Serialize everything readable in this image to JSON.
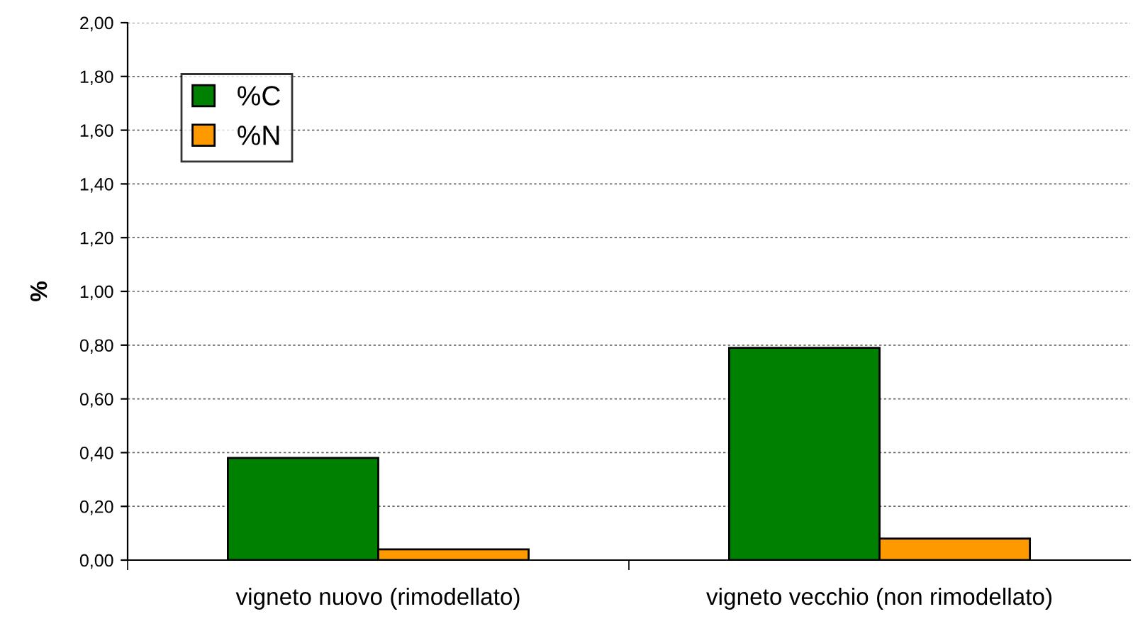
{
  "chart_data": {
    "type": "bar",
    "ylabel": "%",
    "categories": [
      "vigneto nuovo (rimodellato)",
      "vigneto vecchio (non rimodellato)"
    ],
    "series": [
      {
        "name": "%C",
        "color": "#008000",
        "values": [
          0.38,
          0.79
        ]
      },
      {
        "name": "%N",
        "color": "#ff9900",
        "values": [
          0.04,
          0.08
        ]
      }
    ],
    "ylim": [
      0,
      2.0
    ],
    "yticks": [
      {
        "value": 0,
        "label": "0,00"
      },
      {
        "value": 0.2,
        "label": "0,20"
      },
      {
        "value": 0.4,
        "label": "0,40"
      },
      {
        "value": 0.6,
        "label": "0,60"
      },
      {
        "value": 0.8,
        "label": "0,80"
      },
      {
        "value": 1.0,
        "label": "1,00"
      },
      {
        "value": 1.2,
        "label": "1,20"
      },
      {
        "value": 1.4,
        "label": "1,40"
      },
      {
        "value": 1.6,
        "label": "1,60"
      },
      {
        "value": 1.8,
        "label": "1,80"
      },
      {
        "value": 2.0,
        "label": "2,00"
      }
    ],
    "grid": "y",
    "legend": "top left"
  }
}
